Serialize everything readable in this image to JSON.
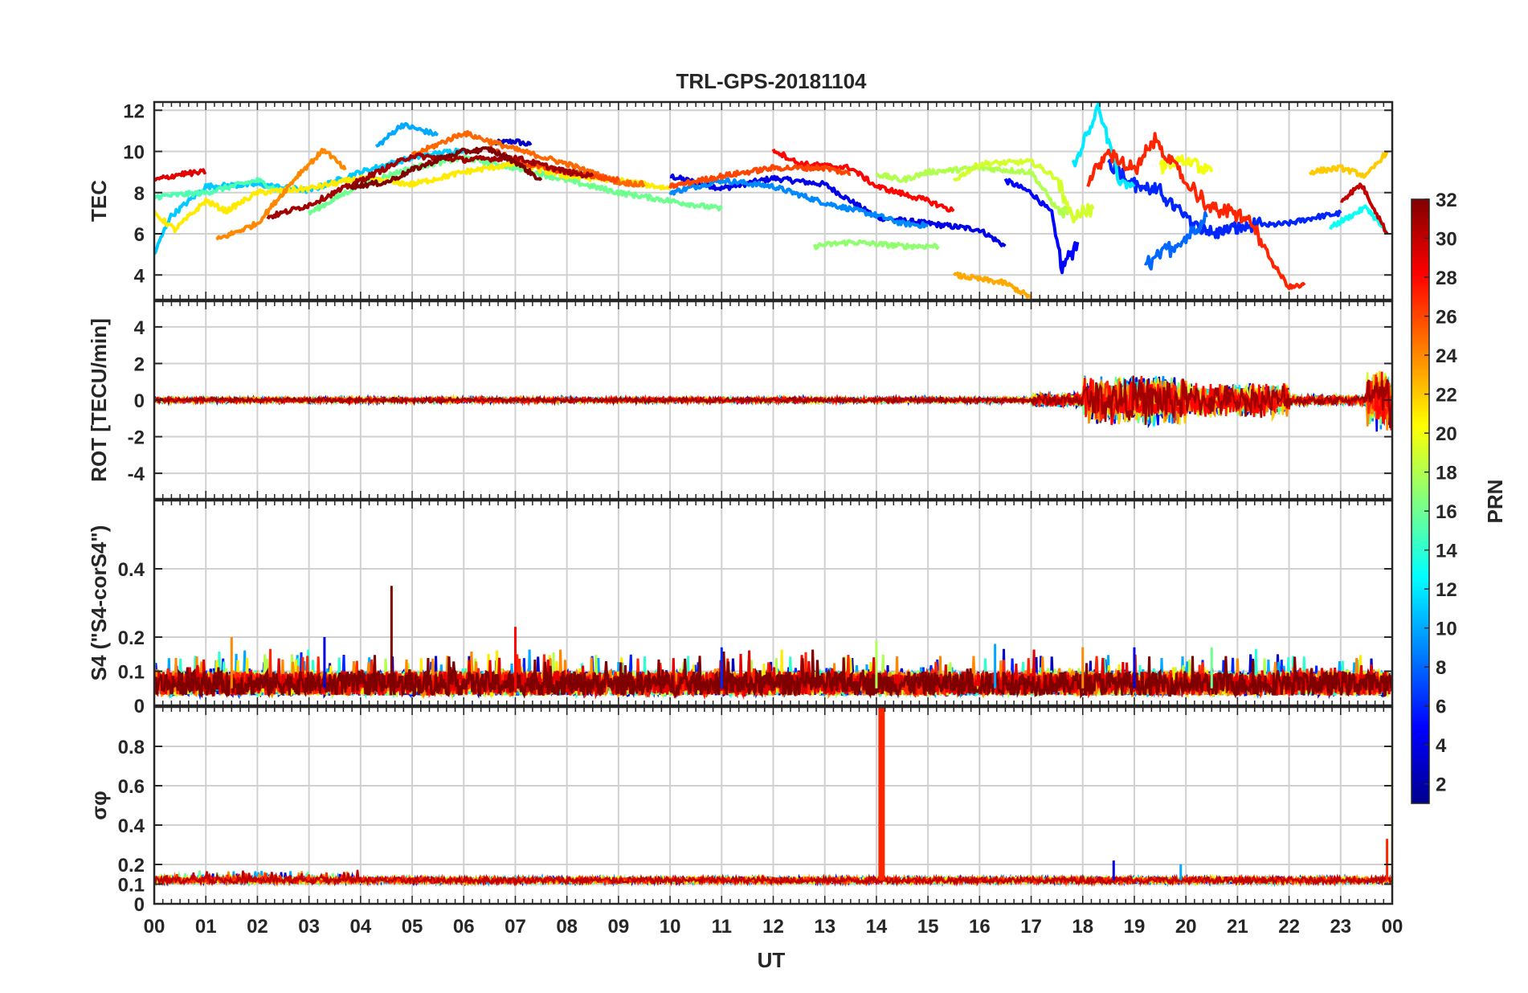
{
  "figure": {
    "title": "TRL-GPS-20181104",
    "xlabel": "UT",
    "x_tick_labels": [
      "00",
      "01",
      "02",
      "03",
      "04",
      "05",
      "06",
      "07",
      "08",
      "09",
      "10",
      "11",
      "12",
      "13",
      "14",
      "15",
      "16",
      "17",
      "18",
      "19",
      "20",
      "21",
      "22",
      "23",
      "00"
    ]
  },
  "colorbar": {
    "label": "PRN",
    "range": [
      1,
      32
    ],
    "tick_labels": [
      "2",
      "4",
      "6",
      "8",
      "10",
      "12",
      "14",
      "16",
      "18",
      "20",
      "22",
      "24",
      "26",
      "28",
      "30",
      "32"
    ],
    "colormap": "jet",
    "colormap_stops": [
      "#00008f",
      "#0000ff",
      "#0080ff",
      "#00ffff",
      "#80ff80",
      "#ffff00",
      "#ff8000",
      "#ff0000",
      "#800000"
    ]
  },
  "chart_data": [
    {
      "type": "line",
      "panel": "tec",
      "ylabel": "TEC",
      "xlim": [
        0,
        24
      ],
      "ylim": [
        2.8,
        12.4
      ],
      "y_tick_labels": [
        "4",
        "6",
        "8",
        "10",
        "12"
      ],
      "grid": true,
      "series": [
        {
          "prn": 3,
          "points": [
            [
              6.6,
              10.4
            ],
            [
              7.0,
              10.5
            ],
            [
              7.3,
              10.3
            ]
          ]
        },
        {
          "prn": 4,
          "points": [
            [
              10.0,
              8.8
            ],
            [
              11.0,
              8.2
            ],
            [
              12.0,
              8.7
            ],
            [
              13.0,
              8.4
            ],
            [
              14.0,
              6.8
            ],
            [
              15.0,
              6.5
            ],
            [
              16.0,
              6.2
            ],
            [
              16.5,
              5.4
            ]
          ]
        },
        {
          "prn": 5,
          "points": [
            [
              16.5,
              8.6
            ],
            [
              17.0,
              8.0
            ],
            [
              17.4,
              7.0
            ],
            [
              17.6,
              4.3
            ],
            [
              17.9,
              5.6
            ]
          ]
        },
        {
          "prn": 6,
          "points": [
            [
              18.5,
              9.5
            ],
            [
              19.0,
              8.4
            ],
            [
              19.5,
              8.0
            ],
            [
              20.0,
              6.8
            ],
            [
              20.5,
              6.0
            ],
            [
              21.0,
              6.3
            ],
            [
              22.0,
              6.5
            ],
            [
              22.5,
              6.8
            ],
            [
              23.0,
              7.0
            ]
          ]
        },
        {
          "prn": 8,
          "points": [
            [
              19.2,
              4.4
            ],
            [
              19.5,
              5.0
            ],
            [
              20.0,
              5.8
            ],
            [
              20.4,
              6.8
            ]
          ]
        },
        {
          "prn": 9,
          "points": [
            [
              10.0,
              8.0
            ],
            [
              11.0,
              8.6
            ],
            [
              12.0,
              8.3
            ],
            [
              13.0,
              7.5
            ],
            [
              14.0,
              6.9
            ],
            [
              14.5,
              6.5
            ],
            [
              15.0,
              6.4
            ]
          ]
        },
        {
          "prn": 10,
          "points": [
            [
              4.3,
              10.2
            ],
            [
              4.8,
              11.3
            ],
            [
              5.5,
              10.8
            ]
          ]
        },
        {
          "prn": 11,
          "points": [
            [
              0.0,
              5.0
            ],
            [
              0.3,
              6.8
            ],
            [
              1.0,
              8.3
            ],
            [
              2.0,
              8.4
            ],
            [
              3.0,
              8.1
            ],
            [
              4.0,
              9.0
            ],
            [
              5.0,
              9.7
            ],
            [
              6.0,
              10.1
            ]
          ]
        },
        {
          "prn": 12,
          "points": [
            [
              17.8,
              9.2
            ],
            [
              18.3,
              12.2
            ],
            [
              18.7,
              8.6
            ],
            [
              19.0,
              8.4
            ]
          ]
        },
        {
          "prn": 13,
          "points": [
            [
              22.8,
              6.3
            ],
            [
              23.5,
              7.3
            ],
            [
              23.9,
              6.0
            ]
          ]
        },
        {
          "prn": 15,
          "points": [
            [
              0.0,
              7.8
            ],
            [
              1.0,
              8.0
            ],
            [
              2.0,
              8.6
            ],
            [
              2.5,
              8.0
            ]
          ]
        },
        {
          "prn": 16,
          "points": [
            [
              3.0,
              7.0
            ],
            [
              4.0,
              8.4
            ],
            [
              5.0,
              9.2
            ],
            [
              6.0,
              9.7
            ],
            [
              7.0,
              9.2
            ],
            [
              8.0,
              8.6
            ],
            [
              9.0,
              8.0
            ],
            [
              10.0,
              7.6
            ],
            [
              11.0,
              7.2
            ]
          ]
        },
        {
          "prn": 17,
          "points": [
            [
              12.8,
              5.4
            ],
            [
              13.5,
              5.6
            ],
            [
              14.5,
              5.4
            ],
            [
              15.2,
              5.4
            ]
          ]
        },
        {
          "prn": 18,
          "points": [
            [
              14.0,
              8.9
            ],
            [
              14.5,
              8.6
            ],
            [
              15.0,
              9.0
            ],
            [
              16.0,
              9.2
            ],
            [
              17.0,
              9.0
            ],
            [
              17.5,
              7.2
            ],
            [
              17.8,
              6.8
            ]
          ]
        },
        {
          "prn": 19,
          "points": [
            [
              15.5,
              8.6
            ],
            [
              16.0,
              9.4
            ],
            [
              17.0,
              9.5
            ],
            [
              17.5,
              8.7
            ],
            [
              17.8,
              6.8
            ],
            [
              18.2,
              7.2
            ]
          ]
        },
        {
          "prn": 20,
          "points": [
            [
              19.5,
              9.3
            ],
            [
              20.0,
              9.6
            ],
            [
              20.5,
              9.0
            ]
          ]
        },
        {
          "prn": 21,
          "points": [
            [
              0.0,
              7.0
            ],
            [
              0.4,
              6.2
            ],
            [
              1.0,
              7.6
            ],
            [
              1.4,
              7.1
            ],
            [
              2.0,
              8.0
            ],
            [
              3.0,
              8.2
            ],
            [
              4.0,
              8.7
            ],
            [
              5.0,
              8.4
            ],
            [
              6.0,
              9.0
            ],
            [
              7.0,
              9.4
            ],
            [
              8.0,
              8.8
            ],
            [
              9.0,
              8.6
            ],
            [
              10.0,
              8.2
            ]
          ]
        },
        {
          "prn": 22,
          "points": [
            [
              22.4,
              9.0
            ],
            [
              23.0,
              9.2
            ],
            [
              23.5,
              8.8
            ],
            [
              23.9,
              10.0
            ]
          ]
        },
        {
          "prn": 23,
          "points": [
            [
              15.5,
              4.0
            ],
            [
              16.5,
              3.6
            ],
            [
              17.0,
              2.9
            ]
          ]
        },
        {
          "prn": 24,
          "points": [
            [
              1.2,
              5.7
            ],
            [
              2.0,
              6.5
            ],
            [
              2.8,
              8.9
            ],
            [
              3.3,
              10.1
            ],
            [
              3.7,
              9.1
            ]
          ]
        },
        {
          "prn": 25,
          "points": [
            [
              5.0,
              9.8
            ],
            [
              6.0,
              10.9
            ],
            [
              7.0,
              10.1
            ],
            [
              8.0,
              9.4
            ],
            [
              9.0,
              8.5
            ],
            [
              9.5,
              8.4
            ]
          ]
        },
        {
          "prn": 26,
          "points": [
            [
              6.5,
              10.2
            ],
            [
              7.0,
              9.5
            ],
            [
              8.0,
              9.0
            ],
            [
              9.0,
              8.6
            ]
          ]
        },
        {
          "prn": 28,
          "points": [
            [
              12.0,
              10.1
            ],
            [
              12.5,
              9.4
            ],
            [
              13.0,
              9.3
            ],
            [
              13.5,
              9.2
            ],
            [
              14.0,
              8.3
            ],
            [
              15.0,
              7.6
            ],
            [
              15.5,
              7.1
            ]
          ]
        },
        {
          "prn": 27,
          "points": [
            [
              18.1,
              8.5
            ],
            [
              18.5,
              10.0
            ],
            [
              19.0,
              9.0
            ],
            [
              19.4,
              10.6
            ],
            [
              20.0,
              8.5
            ],
            [
              20.5,
              7.2
            ],
            [
              21.0,
              7.0
            ],
            [
              21.3,
              6.4
            ],
            [
              21.7,
              4.5
            ],
            [
              22.0,
              3.4
            ],
            [
              22.3,
              3.5
            ]
          ]
        },
        {
          "prn": 29,
          "points": [
            [
              0.0,
              8.6
            ],
            [
              0.5,
              8.9
            ],
            [
              1.0,
              9.0
            ]
          ]
        },
        {
          "prn": 26,
          "points": [
            [
              10.0,
              8.3
            ],
            [
              11.0,
              8.8
            ],
            [
              12.0,
              9.2
            ],
            [
              13.0,
              9.2
            ],
            [
              13.5,
              8.9
            ]
          ]
        },
        {
          "prn": 30,
          "points": [
            [
              23.0,
              7.6
            ],
            [
              23.4,
              8.4
            ],
            [
              23.7,
              7.0
            ],
            [
              23.9,
              6.0
            ]
          ]
        },
        {
          "prn": 31,
          "points": [
            [
              2.2,
              6.8
            ],
            [
              3.0,
              7.4
            ],
            [
              4.0,
              8.6
            ],
            [
              5.0,
              9.8
            ],
            [
              6.0,
              9.6
            ],
            [
              7.0,
              9.7
            ],
            [
              8.0,
              9.0
            ],
            [
              8.5,
              8.8
            ]
          ]
        },
        {
          "prn": 32,
          "points": [
            [
              3.8,
              8.3
            ],
            [
              4.5,
              8.5
            ],
            [
              5.0,
              9.1
            ],
            [
              5.5,
              9.6
            ],
            [
              6.0,
              10.0
            ],
            [
              6.5,
              10.1
            ],
            [
              7.0,
              9.5
            ],
            [
              7.5,
              8.6
            ]
          ]
        }
      ]
    },
    {
      "type": "line",
      "panel": "rot",
      "ylabel": "ROT [TECU/min]",
      "xlim": [
        0,
        24
      ],
      "ylim": [
        -5.4,
        5.4
      ],
      "y_tick_labels": [
        "-4",
        "-2",
        "0",
        "2",
        "4"
      ],
      "grid": true,
      "baseline": 0,
      "noise": [
        {
          "x_range": [
            0,
            17.0
          ],
          "amplitude": 0.15
        },
        {
          "x_range": [
            17.0,
            18.0
          ],
          "amplitude": 0.4
        },
        {
          "x_range": [
            18.0,
            20.0
          ],
          "amplitude": 1.5
        },
        {
          "x_range": [
            20.0,
            22.0
          ],
          "amplitude": 1.0
        },
        {
          "x_range": [
            22.0,
            23.5
          ],
          "amplitude": 0.3
        },
        {
          "x_range": [
            23.5,
            24.0
          ],
          "amplitude": 2.0
        }
      ]
    },
    {
      "type": "line",
      "panel": "s4",
      "ylabel": "S4 (\"S4-corS4\")",
      "xlim": [
        0,
        24
      ],
      "ylim": [
        0,
        0.6
      ],
      "y_tick_labels": [
        "0",
        "0.1",
        "0.2",
        "0.4"
      ],
      "grid": true,
      "baseline": 0.05,
      "peaks": [
        [
          1.5,
          0.2
        ],
        [
          3.3,
          0.2
        ],
        [
          4.6,
          0.35
        ],
        [
          7.0,
          0.23
        ],
        [
          14.0,
          0.19
        ],
        [
          11.0,
          0.17
        ],
        [
          16.3,
          0.18
        ],
        [
          18.0,
          0.17
        ],
        [
          19.0,
          0.17
        ],
        [
          20.5,
          0.17
        ]
      ]
    },
    {
      "type": "line",
      "panel": "sigma_phi",
      "ylabel": "σφ",
      "xlim": [
        0,
        24
      ],
      "ylim": [
        0,
        1.0
      ],
      "y_tick_labels": [
        "0",
        "0.1",
        "0.2",
        "0.4",
        "0.6",
        "0.8"
      ],
      "grid": true,
      "baseline": 0.12,
      "peaks": [
        [
          14.1,
          1.0
        ],
        [
          18.6,
          0.22
        ],
        [
          19.9,
          0.2
        ],
        [
          23.9,
          0.33
        ],
        [
          24.0,
          0.8
        ]
      ]
    }
  ]
}
